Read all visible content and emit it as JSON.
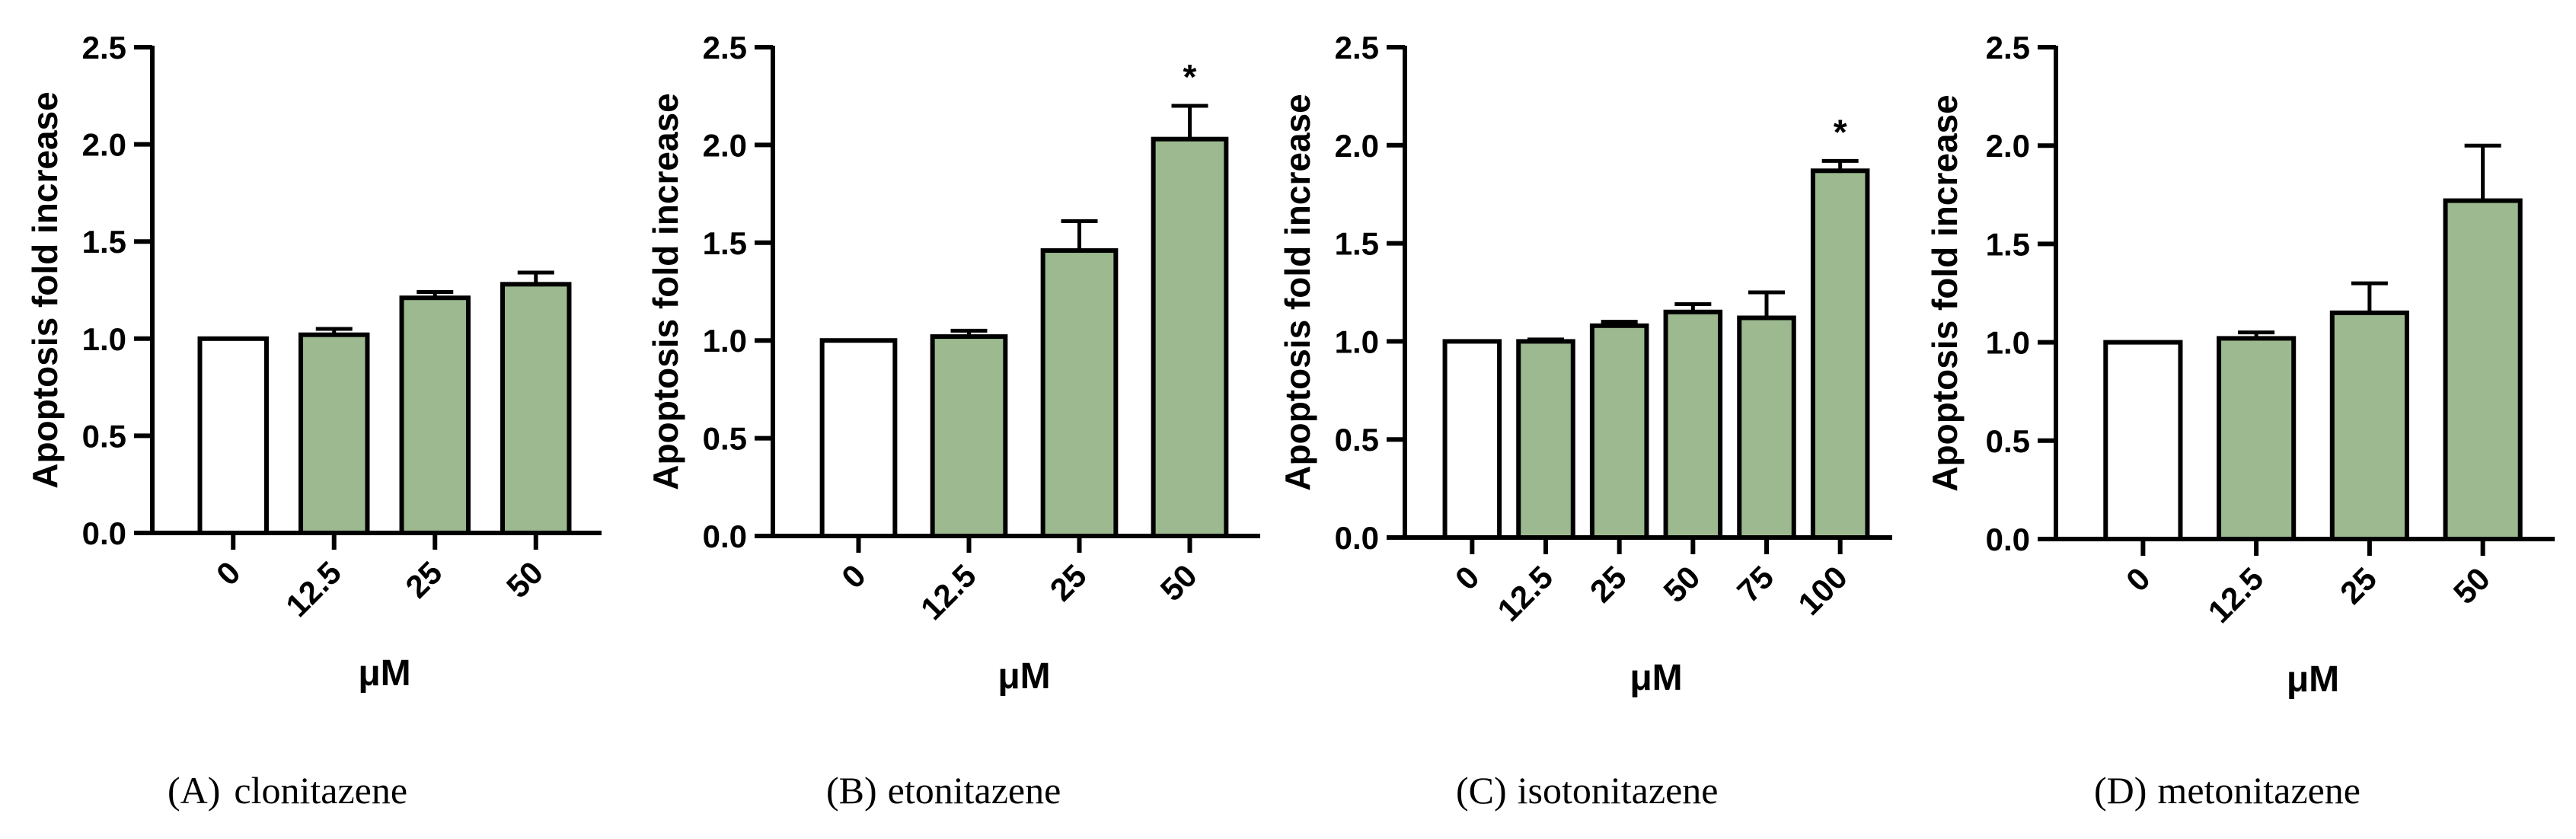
{
  "figure": {
    "bar_fill": "#9cb98f",
    "control_fill": "#ffffff",
    "stroke_color": "#000000"
  },
  "chart_data": [
    {
      "type": "bar",
      "panel": "A",
      "caption_label": "(A)",
      "caption_text": "clonitazene",
      "categories": [
        "0",
        "12.5",
        "25",
        "50"
      ],
      "values": [
        1.0,
        1.02,
        1.21,
        1.28
      ],
      "errors": [
        0,
        0.03,
        0.03,
        0.06
      ],
      "significance": [
        "",
        "",
        "",
        ""
      ],
      "ylabel": "Apoptosis fold increase",
      "xlabel": "μM",
      "ylim": [
        0,
        2.5
      ],
      "yticks": [
        "0.0",
        "0.5",
        "1.0",
        "1.5",
        "2.0",
        "2.5"
      ]
    },
    {
      "type": "bar",
      "panel": "B",
      "caption_label": "(B)",
      "caption_text": "etonitazene",
      "categories": [
        "0",
        "12.5",
        "25",
        "50"
      ],
      "values": [
        1.0,
        1.02,
        1.46,
        2.03
      ],
      "errors": [
        0,
        0.03,
        0.15,
        0.17
      ],
      "significance": [
        "",
        "",
        "",
        "*"
      ],
      "ylabel": "Apoptosis fold increase",
      "xlabel": "μM",
      "ylim": [
        0,
        2.5
      ],
      "yticks": [
        "0.0",
        "0.5",
        "1.0",
        "1.5",
        "2.0",
        "2.5"
      ]
    },
    {
      "type": "bar",
      "panel": "C",
      "caption_label": "(C)",
      "caption_text": "isotonitazene",
      "categories": [
        "0",
        "12.5",
        "25",
        "50",
        "75",
        "100"
      ],
      "values": [
        1.0,
        1.0,
        1.08,
        1.15,
        1.12,
        1.87
      ],
      "errors": [
        0,
        0.01,
        0.02,
        0.04,
        0.13,
        0.05
      ],
      "significance": [
        "",
        "",
        "",
        "",
        "",
        "*"
      ],
      "ylabel": "Apoptosis fold increase",
      "xlabel": "μM",
      "ylim": [
        0,
        2.5
      ],
      "yticks": [
        "0.0",
        "0.5",
        "1.0",
        "1.5",
        "2.0",
        "2.5"
      ]
    },
    {
      "type": "bar",
      "panel": "D",
      "caption_label": "(D)",
      "caption_text": "metonitazene",
      "categories": [
        "0",
        "12.5",
        "25",
        "50"
      ],
      "values": [
        1.0,
        1.02,
        1.15,
        1.72
      ],
      "errors": [
        0,
        0.03,
        0.15,
        0.28
      ],
      "significance": [
        "",
        "",
        "",
        ""
      ],
      "ylabel": "Apoptosis fold increase",
      "xlabel": "μM",
      "ylim": [
        0,
        2.5
      ],
      "yticks": [
        "0.0",
        "0.5",
        "1.0",
        "1.5",
        "2.0",
        "2.5"
      ]
    }
  ]
}
